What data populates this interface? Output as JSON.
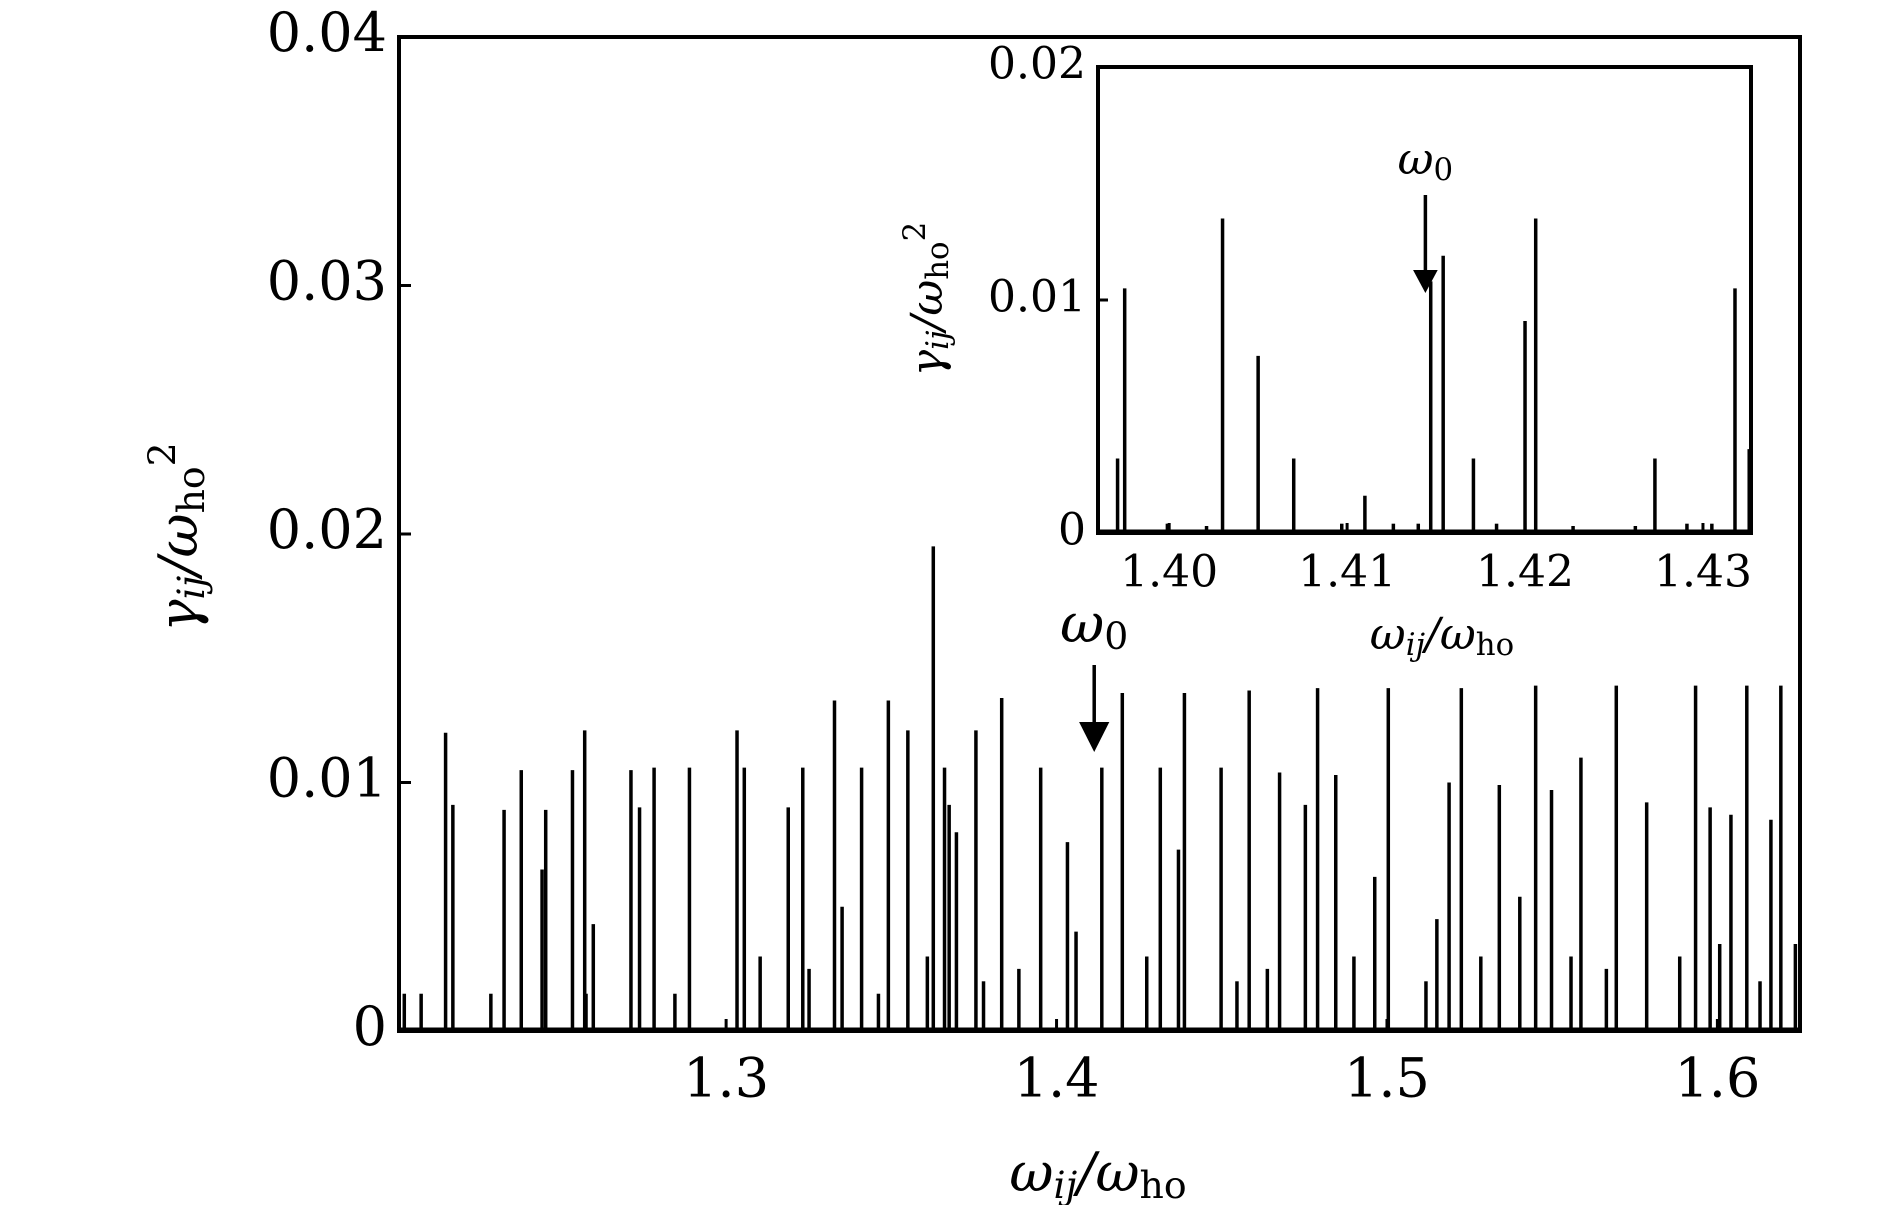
{
  "chart_data": [
    {
      "type": "stem",
      "color": "#000000",
      "xlim": [
        1.201,
        1.625
      ],
      "ylim": [
        0,
        0.04
      ],
      "xticks": [
        1.3,
        1.4,
        1.5,
        1.6
      ],
      "yticks": [
        0,
        0.01,
        0.02,
        0.03,
        0.04
      ],
      "xlabel": [
        {
          "text": "ω",
          "style": "normal",
          "italic": true
        },
        {
          "text": "ij",
          "style": "sub",
          "italic": true
        },
        {
          "text": "/ω",
          "style": "normal",
          "italic": true
        },
        {
          "text": "ho",
          "style": "sub",
          "italic": false
        }
      ],
      "ylabel": [
        {
          "text": "γ",
          "style": "normal",
          "italic": true
        },
        {
          "text": "ij",
          "style": "sub",
          "italic": true
        },
        {
          "text": "/ω",
          "style": "normal",
          "italic": true
        },
        {
          "text": "ho",
          "style": "sub",
          "italic": false
        },
        {
          "text": "2",
          "style": "super",
          "italic": false
        }
      ],
      "annotation": {
        "text": [
          {
            "text": "ω",
            "style": "normal",
            "italic": true
          },
          {
            "text": "0",
            "style": "sub",
            "italic": false
          }
        ],
        "x": 1.4114
      },
      "x": [
        1.2151,
        1.2173,
        1.2328,
        1.238,
        1.2454,
        1.2535,
        1.2572,
        1.2598,
        1.2712,
        1.2738,
        1.2782,
        1.2889,
        1.3033,
        1.3055,
        1.3188,
        1.3232,
        1.3328,
        1.341,
        1.3491,
        1.355,
        1.3627,
        1.3661,
        1.3675,
        1.3697,
        1.3756,
        1.3834,
        1.3952,
        1.4033,
        1.4137,
        1.4199,
        1.4314,
        1.4369,
        1.4387,
        1.4498,
        1.4583,
        1.4675,
        1.4753,
        1.479,
        1.4845,
        1.4963,
        1.5004,
        1.5188,
        1.5225,
        1.534,
        1.5402,
        1.545,
        1.5498,
        1.5587,
        1.5694,
        1.5786,
        1.5934,
        1.5978,
        1.6041,
        1.6089,
        1.6162,
        1.6192,
        1.6236,
        1.2026,
        1.2077,
        1.2288,
        1.2443,
        1.2576,
        1.2845,
        1.3103,
        1.3251,
        1.3351,
        1.3461,
        1.3609,
        1.3779,
        1.3886,
        1.4059,
        1.4273,
        1.4546,
        1.4638,
        1.49,
        1.5118,
        1.5151,
        1.5284,
        1.5557,
        1.5664,
        1.5886,
        1.6007,
        1.6129
      ],
      "values": [
        0.012,
        0.0091,
        0.0089,
        0.0105,
        0.0089,
        0.0105,
        0.0121,
        0.0043,
        0.0105,
        0.009,
        0.0106,
        0.0106,
        0.0121,
        0.0106,
        0.009,
        0.0106,
        0.0133,
        0.0106,
        0.0133,
        0.0121,
        0.0195,
        0.0106,
        0.0091,
        0.008,
        0.0121,
        0.0134,
        0.0106,
        0.0076,
        0.0106,
        0.0136,
        0.0106,
        0.0073,
        0.0136,
        0.0106,
        0.0137,
        0.0104,
        0.0091,
        0.0138,
        0.0103,
        0.0062,
        0.0138,
        0.01,
        0.0138,
        0.0099,
        0.0054,
        0.0139,
        0.0097,
        0.011,
        0.0139,
        0.0092,
        0.0139,
        0.009,
        0.0087,
        0.0139,
        0.0085,
        0.0139,
        0.0035,
        0.0015,
        0.0015,
        0.0015,
        0.0065,
        0.0015,
        0.0015,
        0.003,
        0.0025,
        0.005,
        0.0015,
        0.003,
        0.002,
        0.0025,
        0.004,
        0.003,
        0.002,
        0.0025,
        0.003,
        0.002,
        0.0045,
        0.003,
        0.003,
        0.0025,
        0.003,
        0.0035,
        0.002
      ]
    },
    {
      "type": "stem",
      "color": "#000000",
      "xlim": [
        1.396,
        1.4327
      ],
      "ylim": [
        0,
        0.02
      ],
      "xticks": [
        {
          "value": 1.4,
          "label": "1.40"
        },
        1.41,
        1.42,
        1.43
      ],
      "yticks": [
        0,
        0.01,
        0.02
      ],
      "xlabel": [
        {
          "text": "ω",
          "style": "normal",
          "italic": true
        },
        {
          "text": "ij",
          "style": "sub",
          "italic": true
        },
        {
          "text": "/ω",
          "style": "normal",
          "italic": true
        },
        {
          "text": "ho",
          "style": "sub",
          "italic": false
        }
      ],
      "ylabel": [
        {
          "text": "γ",
          "style": "normal",
          "italic": true
        },
        {
          "text": "ij",
          "style": "sub",
          "italic": true
        },
        {
          "text": "/ω",
          "style": "normal",
          "italic": true
        },
        {
          "text": "ho",
          "style": "sub",
          "italic": false
        },
        {
          "text": "2",
          "style": "super",
          "italic": false
        }
      ],
      "annotation": {
        "text": [
          {
            "text": "ω",
            "style": "normal",
            "italic": true
          },
          {
            "text": "0",
            "style": "sub",
            "italic": false
          }
        ],
        "x": 1.4144
      },
      "x": [
        1.3971,
        1.3975,
        1.403,
        1.405,
        1.407,
        1.411,
        1.4147,
        1.4154,
        1.4171,
        1.42,
        1.4206,
        1.4273,
        1.4318,
        1.4326,
        1.3999,
        1.4021,
        1.4097,
        1.4126,
        1.414,
        1.4184,
        1.4227,
        1.4262,
        1.4291,
        1.4305
      ],
      "values": [
        0.0032,
        0.0105,
        0.0135,
        0.0076,
        0.0032,
        0.0016,
        0.0108,
        0.0119,
        0.0032,
        0.0091,
        0.0135,
        0.0032,
        0.0105,
        0.0036,
        0.0004,
        0.0003,
        0.0004,
        0.0004,
        0.0004,
        0.0004,
        0.0003,
        0.0003,
        0.0004,
        0.0004
      ]
    }
  ]
}
